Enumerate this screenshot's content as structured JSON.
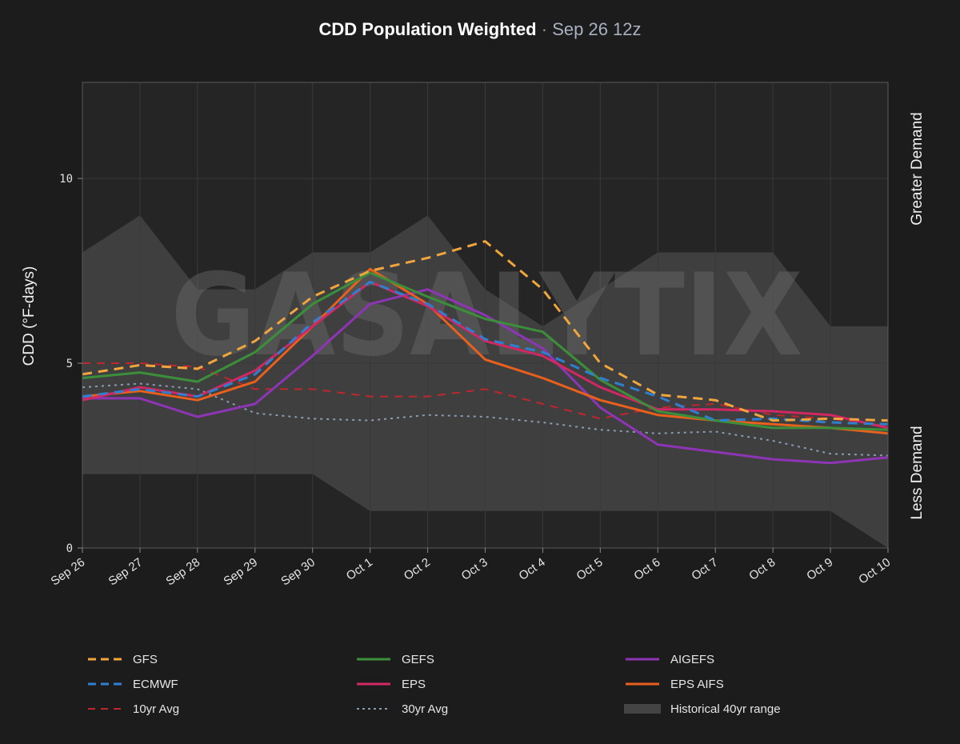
{
  "title": {
    "main": "CDD Population Weighted",
    "separator": "·",
    "run": "Sep 26 12z"
  },
  "watermark": "GASALYTIX",
  "right_labels": {
    "top": "Greater Demand",
    "bottom": "Less Demand"
  },
  "colors": {
    "background": "#1c1c1c",
    "plot_background": "#252525",
    "grid": "#3a3a3a",
    "historical_band": "#444444"
  },
  "chart_data": {
    "type": "line",
    "title": "CDD Population Weighted",
    "subtitle": "Sep 26 12z",
    "ylabel": "CDD (°F-days)",
    "xlabel": "",
    "ylim": [
      0,
      12.6
    ],
    "yticks": [
      0,
      5,
      10
    ],
    "grid": true,
    "legend_position": "bottom",
    "categories": [
      "Sep 26",
      "Sep 27",
      "Sep 28",
      "Sep 29",
      "Sep 30",
      "Oct 1",
      "Oct 2",
      "Oct 3",
      "Oct 4",
      "Oct 5",
      "Oct 6",
      "Oct 7",
      "Oct 8",
      "Oct 9",
      "Oct 10"
    ],
    "band": {
      "name": "Historical 40yr range",
      "color": "#444444",
      "low": [
        2.0,
        2.0,
        2.0,
        2.0,
        2.0,
        1.0,
        1.0,
        1.0,
        1.0,
        1.0,
        1.0,
        1.0,
        1.0,
        1.0,
        0.0
      ],
      "high": [
        8.0,
        9.0,
        7.0,
        7.0,
        8.0,
        8.0,
        9.0,
        7.0,
        6.0,
        7.0,
        8.0,
        8.0,
        8.0,
        6.0,
        6.0
      ]
    },
    "series": [
      {
        "name": "10yr Avg",
        "color": "#c0272d",
        "dash": "10 8",
        "width": 2,
        "values": [
          5.0,
          5.0,
          4.9,
          4.3,
          4.3,
          4.1,
          4.1,
          4.3,
          3.9,
          3.5,
          3.8,
          3.9,
          3.6,
          3.5,
          3.3
        ]
      },
      {
        "name": "30yr Avg",
        "color": "#8a9bb0",
        "dash": "3 5",
        "width": 2,
        "values": [
          4.35,
          4.45,
          4.3,
          3.65,
          3.5,
          3.45,
          3.6,
          3.55,
          3.4,
          3.2,
          3.1,
          3.15,
          2.9,
          2.55,
          2.5
        ]
      },
      {
        "name": "AIGEFS",
        "color": "#8e35b5",
        "dash": "",
        "width": 3,
        "values": [
          4.05,
          4.05,
          3.55,
          3.9,
          5.2,
          6.6,
          7.0,
          6.3,
          5.4,
          3.8,
          2.8,
          2.6,
          2.4,
          2.3,
          2.45
        ]
      },
      {
        "name": "EPS AIFS",
        "color": "#e8601c",
        "dash": "",
        "width": 3,
        "values": [
          4.1,
          4.25,
          4.0,
          4.5,
          6.0,
          7.55,
          6.6,
          5.1,
          4.6,
          4.0,
          3.6,
          3.45,
          3.35,
          3.25,
          3.1
        ]
      },
      {
        "name": "EPS",
        "color": "#d12763",
        "dash": "",
        "width": 3,
        "values": [
          4.0,
          4.35,
          4.1,
          4.8,
          6.0,
          7.2,
          6.55,
          5.6,
          5.2,
          4.35,
          3.75,
          3.75,
          3.7,
          3.6,
          3.25
        ]
      },
      {
        "name": "GEFS",
        "color": "#3c8f3a",
        "dash": "",
        "width": 3,
        "values": [
          4.6,
          4.75,
          4.5,
          5.3,
          6.6,
          7.45,
          6.8,
          6.2,
          5.85,
          4.55,
          3.7,
          3.45,
          3.25,
          3.25,
          3.2
        ]
      },
      {
        "name": "ECMWF",
        "color": "#2f7fd1",
        "dash": "12 8",
        "width": 3,
        "values": [
          4.1,
          4.3,
          4.1,
          4.7,
          6.1,
          7.2,
          6.6,
          5.65,
          5.3,
          4.6,
          4.1,
          3.45,
          3.5,
          3.4,
          3.35
        ]
      },
      {
        "name": "GFS",
        "color": "#f0a63c",
        "dash": "12 8",
        "width": 3,
        "values": [
          4.7,
          4.95,
          4.85,
          5.6,
          6.8,
          7.5,
          7.85,
          8.3,
          7.0,
          5.0,
          4.15,
          4.0,
          3.45,
          3.5,
          3.45
        ]
      }
    ]
  },
  "legend": {
    "items": [
      {
        "label": "GFS",
        "color": "#f0a63c",
        "style": "dashed"
      },
      {
        "label": "GEFS",
        "color": "#3c8f3a",
        "style": "solid"
      },
      {
        "label": "AIGEFS",
        "color": "#8e35b5",
        "style": "solid"
      },
      {
        "label": "ECMWF",
        "color": "#2f7fd1",
        "style": "dashed"
      },
      {
        "label": "EPS",
        "color": "#d12763",
        "style": "solid"
      },
      {
        "label": "EPS AIFS",
        "color": "#e8601c",
        "style": "solid"
      },
      {
        "label": "10yr Avg",
        "color": "#c0272d",
        "style": "thin-dashed"
      },
      {
        "label": "30yr Avg",
        "color": "#8a9bb0",
        "style": "dotted"
      },
      {
        "label": "Historical 40yr range",
        "color": "#444444",
        "style": "band"
      }
    ]
  }
}
